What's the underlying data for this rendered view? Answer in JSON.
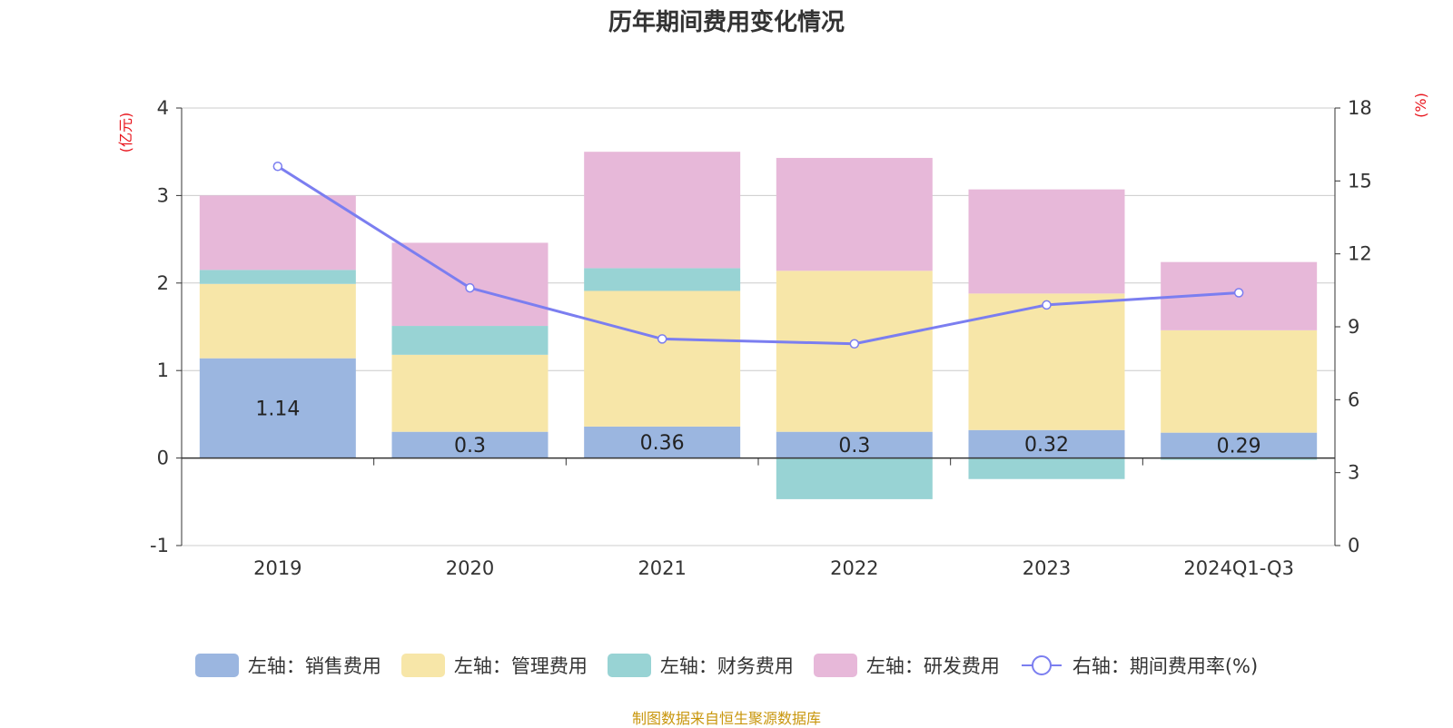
{
  "title": "历年期间费用变化情况",
  "source": "制图数据来自恒生聚源数据库",
  "chart_data": {
    "type": "bar",
    "stacked": true,
    "categories": [
      "2019",
      "2020",
      "2021",
      "2022",
      "2023",
      "2024Q1-Q3"
    ],
    "left_axis": {
      "unit": "(亿元)",
      "ylim": [
        -1,
        4
      ],
      "ticks": [
        "-1",
        "0",
        "1",
        "2",
        "3",
        "4"
      ]
    },
    "right_axis": {
      "unit": "(%)",
      "ylim": [
        0,
        18
      ],
      "ticks": [
        "0",
        "3",
        "6",
        "9",
        "12",
        "15",
        "18"
      ]
    },
    "series": [
      {
        "name": "左轴：销售费用",
        "color": "#9bb6e0",
        "values": [
          1.14,
          0.3,
          0.36,
          0.3,
          0.32,
          0.29
        ],
        "labels": [
          "1.14",
          "0.3",
          "0.36",
          "0.3",
          "0.32",
          "0.29"
        ]
      },
      {
        "name": "左轴：管理费用",
        "color": "#f7e6a8",
        "values": [
          0.85,
          0.88,
          1.55,
          1.84,
          1.56,
          1.17
        ]
      },
      {
        "name": "左轴：财务费用",
        "color": "#98d3d4",
        "values": [
          0.16,
          0.33,
          0.26,
          -0.47,
          -0.24,
          -0.02
        ]
      },
      {
        "name": "左轴：研发费用",
        "color": "#e7b8d9",
        "values": [
          0.85,
          0.95,
          1.33,
          1.29,
          1.19,
          0.78
        ]
      }
    ],
    "line": {
      "name": "右轴：期间费用率(%)",
      "color": "#7b7ef0",
      "values": [
        15.6,
        10.6,
        8.5,
        8.3,
        9.9,
        10.4
      ]
    },
    "grid": true,
    "legend_position": "bottom"
  }
}
